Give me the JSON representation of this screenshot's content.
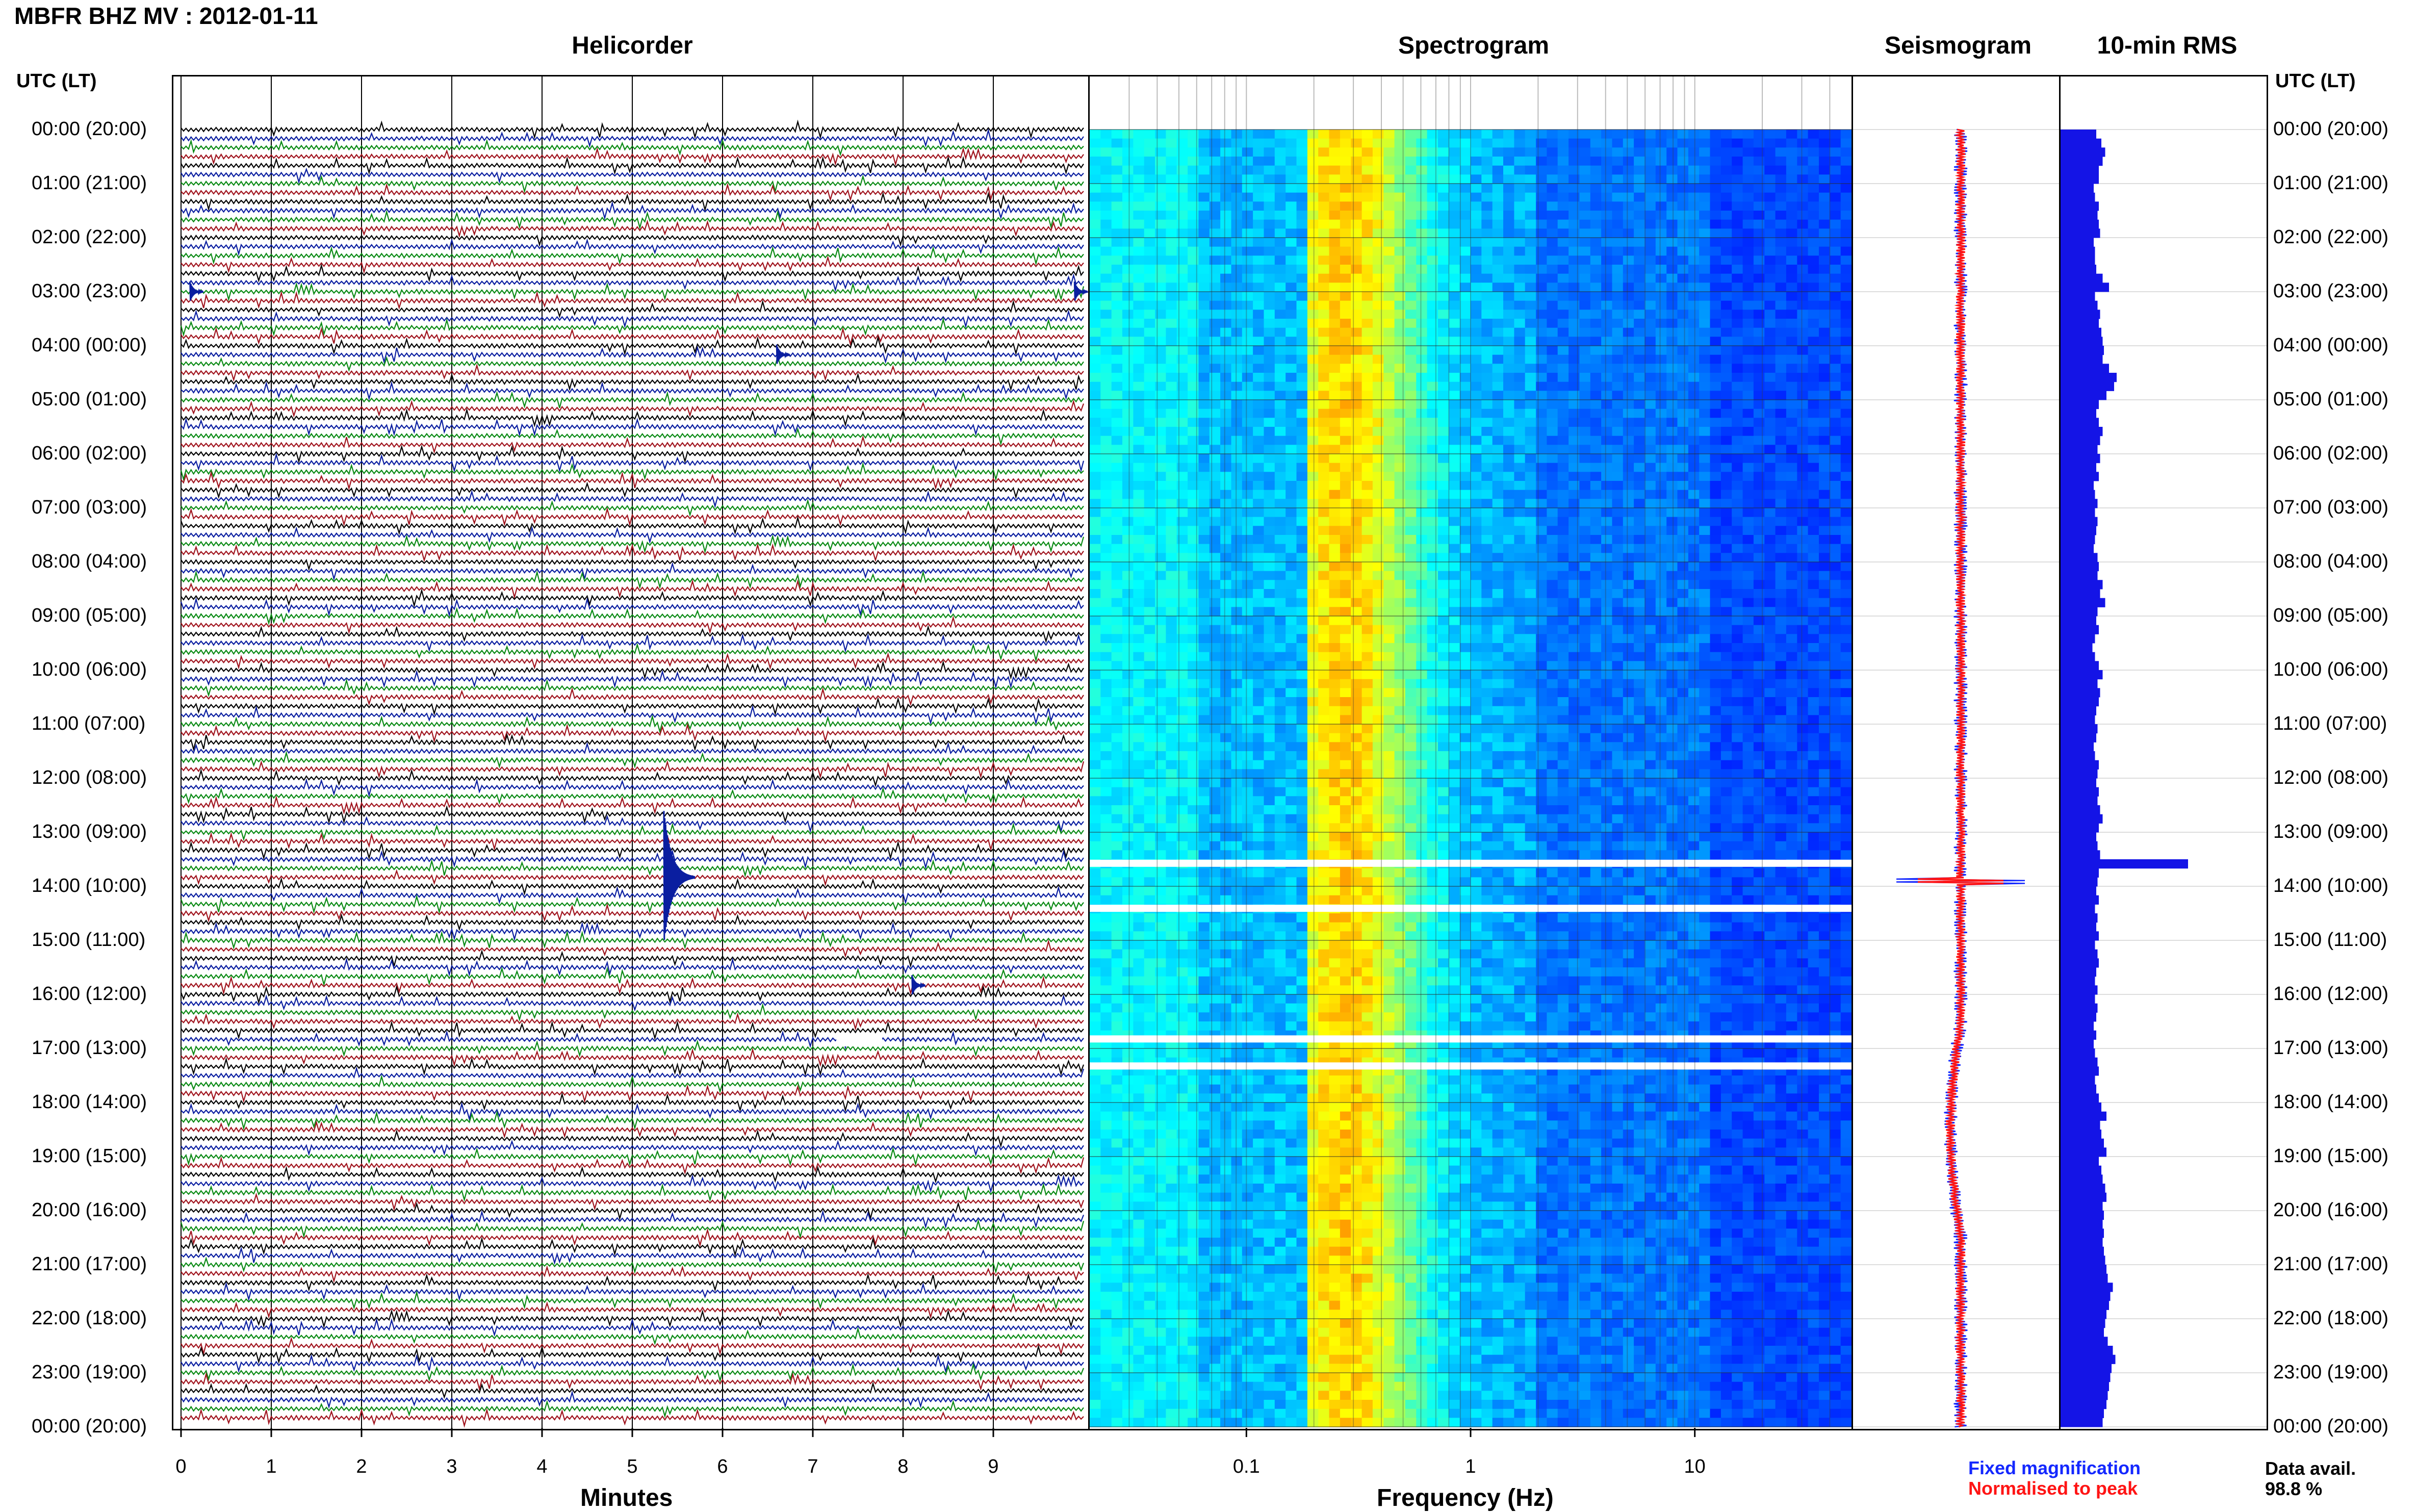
{
  "title": "MBFR BHZ MV : 2012-01-11",
  "panels": {
    "helicorder": "Helicorder",
    "spectrogram": "Spectrogram",
    "seismogram": "Seismogram",
    "rms": "10-min RMS"
  },
  "utc_label": "UTC (LT)",
  "time_labels": [
    "00:00 (20:00)",
    "01:00 (21:00)",
    "02:00 (22:00)",
    "03:00 (23:00)",
    "04:00 (00:00)",
    "05:00 (01:00)",
    "06:00 (02:00)",
    "07:00 (03:00)",
    "08:00 (04:00)",
    "09:00 (05:00)",
    "10:00 (06:00)",
    "11:00 (07:00)",
    "12:00 (08:00)",
    "13:00 (09:00)",
    "14:00 (10:00)",
    "15:00 (11:00)",
    "16:00 (12:00)",
    "17:00 (13:00)",
    "18:00 (14:00)",
    "19:00 (15:00)",
    "20:00 (16:00)",
    "21:00 (17:00)",
    "22:00 (18:00)",
    "23:00 (19:00)",
    "00:00 (20:00)"
  ],
  "axes": {
    "minutes_label": "Minutes",
    "minutes_ticks": [
      "0",
      "1",
      "2",
      "3",
      "4",
      "5",
      "6",
      "7",
      "8",
      "9"
    ],
    "freq_label": "Frequency (Hz)",
    "freq_ticks": [
      "0.1",
      "1",
      "10"
    ]
  },
  "legend": {
    "fixed": "Fixed magnification",
    "normalised": "Normalised to peak"
  },
  "data_avail": {
    "label": "Data avail.",
    "value": "98.8 %"
  },
  "colors": {
    "trace_black": "#000000",
    "trace_blue": "#0a1ea0",
    "trace_green": "#0a8a14",
    "trace_red": "#a0141e",
    "rms_bar": "#1414e6",
    "seis_fixed": "#1428ff",
    "seis_norm": "#ff1414"
  },
  "chart_data": [
    {
      "type": "line",
      "title": "Helicorder",
      "xlabel": "Minutes",
      "xlim": [
        0,
        10
      ],
      "rows_per_hour": 6,
      "traces": 144,
      "events": [
        {
          "time_utc": "13:50",
          "minute": 5.35,
          "amplitude": "large"
        },
        {
          "time_utc": "15:50",
          "minute": 8.1,
          "amplitude": "small"
        },
        {
          "time_utc": "04:10",
          "minute": 6.6,
          "amplitude": "small"
        },
        {
          "time_utc": "03:00",
          "minute": 0.1,
          "amplitude": "small"
        },
        {
          "time_utc": "03:00",
          "minute": 9.9,
          "amplitude": "small"
        }
      ]
    },
    {
      "type": "heatmap",
      "title": "Spectrogram",
      "xlabel": "Frequency (Hz)",
      "xscale": "log",
      "xlim": [
        0.02,
        50
      ],
      "xticks": [
        0.1,
        1,
        10
      ],
      "colormap": "jet",
      "peak_band_hz": [
        0.2,
        0.35
      ],
      "gaps_utc": [
        "13:35",
        "14:25",
        "16:50",
        "17:20"
      ]
    },
    {
      "type": "line",
      "title": "Seismogram",
      "series": [
        {
          "name": "Fixed magnification"
        },
        {
          "name": "Normalised to peak"
        }
      ]
    },
    {
      "type": "bar",
      "title": "10-min RMS",
      "orientation": "horizontal",
      "values": [
        0.28,
        0.32,
        0.35,
        0.33,
        0.3,
        0.3,
        0.26,
        0.27,
        0.3,
        0.29,
        0.3,
        0.31,
        0.26,
        0.27,
        0.27,
        0.28,
        0.33,
        0.38,
        0.27,
        0.29,
        0.31,
        0.3,
        0.32,
        0.33,
        0.34,
        0.33,
        0.38,
        0.44,
        0.42,
        0.36,
        0.3,
        0.28,
        0.3,
        0.33,
        0.31,
        0.29,
        0.31,
        0.28,
        0.3,
        0.26,
        0.27,
        0.29,
        0.27,
        0.29,
        0.28,
        0.27,
        0.26,
        0.29,
        0.3,
        0.29,
        0.33,
        0.31,
        0.35,
        0.29,
        0.28,
        0.3,
        0.27,
        0.25,
        0.27,
        0.3,
        0.33,
        0.29,
        0.31,
        0.3,
        0.28,
        0.27,
        0.29,
        0.28,
        0.26,
        0.27,
        0.3,
        0.29,
        0.28,
        0.3,
        0.29,
        0.31,
        0.33,
        0.3,
        0.28,
        0.29,
        0.31,
        1.0,
        0.3,
        0.29,
        0.28,
        0.3,
        0.27,
        0.29,
        0.28,
        0.3,
        0.27,
        0.29,
        0.3,
        0.28,
        0.27,
        0.29,
        0.27,
        0.29,
        0.28,
        0.26,
        0.28,
        0.26,
        0.27,
        0.29,
        0.3,
        0.27,
        0.28,
        0.3,
        0.32,
        0.36,
        0.31,
        0.32,
        0.34,
        0.36,
        0.3,
        0.32,
        0.33,
        0.35,
        0.36,
        0.33,
        0.34,
        0.33,
        0.34,
        0.33,
        0.34,
        0.35,
        0.36,
        0.37,
        0.41,
        0.39,
        0.38,
        0.36,
        0.35,
        0.34,
        0.37,
        0.41,
        0.43,
        0.4,
        0.39,
        0.38,
        0.37,
        0.36,
        0.34,
        0.33
      ]
    }
  ]
}
